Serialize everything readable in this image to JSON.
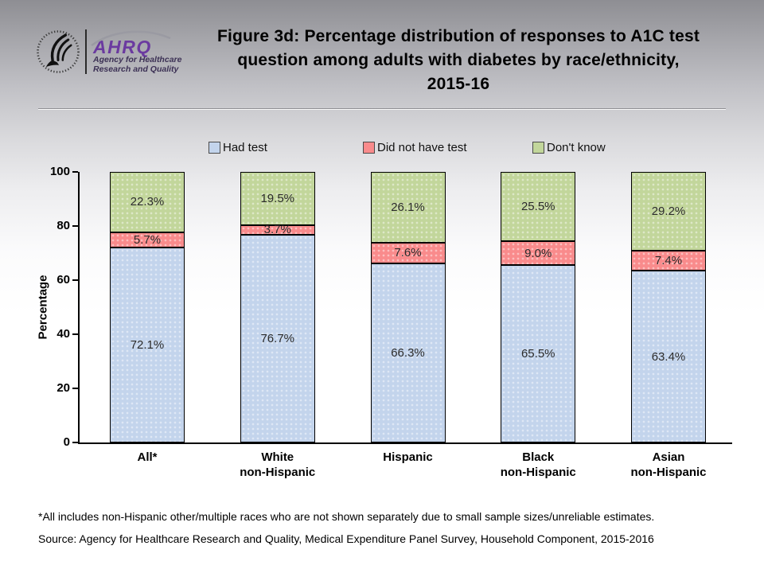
{
  "header": {
    "logo": {
      "abbrev": "AHRQ",
      "tagline_line1": "Agency for Healthcare",
      "tagline_line2": "Research and Quality"
    },
    "title_lines": [
      "Figure 3d: Percentage distribution of responses to A1C test",
      "question among adults with diabetes by race/ethnicity,",
      "2015-16"
    ]
  },
  "footnotes": [
    "*All includes non-Hispanic other/multiple races who are not shown separately due to small sample sizes/unreliable estimates.",
    "Source: Agency for Healthcare Research and Quality, Medical Expenditure Panel Survey, Household Component, 2015-2016"
  ],
  "chart_data": {
    "type": "bar",
    "stacked": true,
    "title": "Figure 3d: Percentage distribution of responses to A1C test question among adults with diabetes by race/ethnicity, 2015-16",
    "ylabel": "Percentage",
    "xlabel": "",
    "ylim": [
      0,
      100
    ],
    "yticks": [
      0,
      20,
      40,
      60,
      80,
      100
    ],
    "grid": false,
    "legend_position": "top",
    "categories": [
      "All*",
      "White non-Hispanic",
      "Hispanic",
      "Black non-Hispanic",
      "Asian non-Hispanic"
    ],
    "category_label_lines": [
      [
        "All*"
      ],
      [
        "White",
        "non-Hispanic"
      ],
      [
        "Hispanic"
      ],
      [
        "Black",
        "non-Hispanic"
      ],
      [
        "Asian",
        "non-Hispanic"
      ]
    ],
    "series": [
      {
        "name": "Had test",
        "color": "#c3d4ec",
        "values": [
          72.1,
          76.7,
          66.3,
          65.5,
          63.4
        ]
      },
      {
        "name": "Did not have test",
        "color": "#f98b8c",
        "values": [
          5.7,
          3.7,
          7.6,
          9.0,
          7.4
        ]
      },
      {
        "name": "Don't know",
        "color": "#c2d69b",
        "values": [
          22.3,
          19.5,
          26.1,
          25.5,
          29.2
        ]
      }
    ],
    "value_label_format": "percent_one_decimal"
  }
}
